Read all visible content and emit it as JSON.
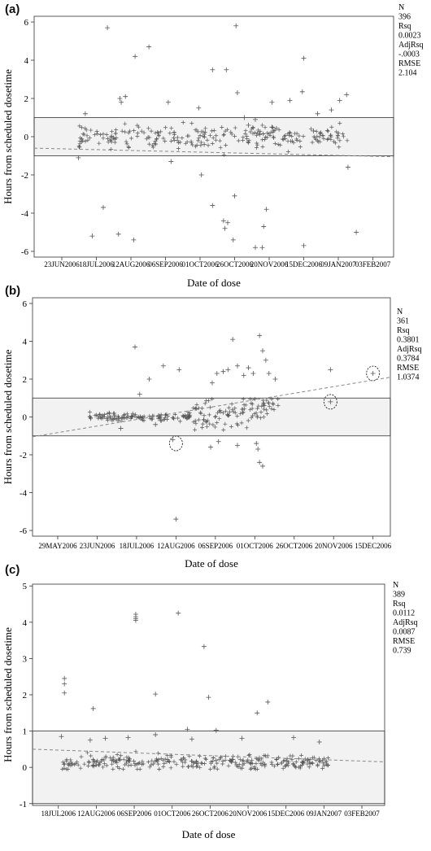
{
  "colors": {
    "band_fill": "#f2f2f2",
    "axis": "#333333",
    "marker": "#555555",
    "trend": "#888888"
  },
  "chart_data": [
    {
      "panel": "(a)",
      "type": "scatter",
      "xlabel": "Date of dose",
      "ylabel": "Hours from scheduled dosetime",
      "x_ticks": [
        "23JUN2006",
        "18JUL2006",
        "12AUG2006",
        "06SEP2006",
        "01OCT2006",
        "26OCT2006",
        "20NOV2006",
        "15DEC2006",
        "09JAN2007",
        "03FEB2007"
      ],
      "xlim": [
        "2006-06-03",
        "2007-02-18"
      ],
      "y_ticks": [
        "6",
        "4",
        "2",
        "0",
        "-2",
        "-4",
        "-6"
      ],
      "ylim": [
        -6.3,
        6.3
      ],
      "band": [
        -1,
        1
      ],
      "trend": {
        "x": [
          "2006-06-03",
          "2007-02-18"
        ],
        "y": [
          -0.6,
          -1.05
        ]
      },
      "stats": {
        "N_label": "N",
        "N": "396",
        "Rsq_label": "Rsq",
        "Rsq": "0.0023",
        "AdjRsq_label": "AdjRsq",
        "AdjRsq": "-.0003",
        "RMSE_label": "RMSE",
        "RMSE": "2.104"
      },
      "series": [
        {
          "marker": "+",
          "x": [
            "2006-07-10",
            "2006-07-26",
            "2006-08-15",
            "2006-08-25",
            "2006-09-08",
            "2006-09-30",
            "2006-10-10",
            "2006-10-20",
            "2006-10-27",
            "2006-10-28",
            "2006-11-02",
            "2006-11-05",
            "2006-11-10",
            "2006-11-22",
            "2006-12-05",
            "2006-12-14",
            "2006-12-15",
            "2006-12-25",
            "2007-01-04",
            "2007-01-10",
            "2007-01-15",
            "2006-07-05",
            "2006-07-15",
            "2006-07-23",
            "2006-08-03",
            "2006-08-14",
            "2006-09-10",
            "2006-10-02",
            "2006-10-10",
            "2006-10-18",
            "2006-10-19",
            "2006-10-21",
            "2006-10-25",
            "2006-10-26",
            "2006-11-10",
            "2006-11-15",
            "2006-11-16",
            "2006-11-18",
            "2006-12-15",
            "2007-01-16",
            "2007-01-22",
            "2006-08-04",
            "2006-08-05",
            "2006-08-08",
            "2006-10-04",
            "2006-11-22",
            "2006-12-22"
          ],
          "y": [
            1.2,
            5.7,
            4.2,
            4.7,
            1.8,
            1.5,
            3.5,
            3.5,
            5.8,
            2.3,
            1.0,
            0.6,
            0.9,
            1.8,
            1.9,
            2.35,
            4.1,
            1.2,
            1.4,
            1.9,
            2.2,
            -1.1,
            -5.2,
            -3.7,
            -5.1,
            -5.4,
            -1.3,
            -2.0,
            -3.6,
            -4.4,
            -4.8,
            -4.5,
            -5.4,
            -3.1,
            -5.8,
            -5.8,
            -4.7,
            -3.8,
            -5.7,
            -1.6,
            -5.0,
            2.0,
            1.8,
            2.1,
            -0.4,
            0.5,
            0.3
          ]
        }
      ]
    },
    {
      "panel": "(b)",
      "type": "scatter",
      "xlabel": "Date of dose",
      "ylabel": "Hours from scheduled dosetime",
      "x_ticks": [
        "29MAY2006",
        "23JUN2006",
        "18JUL2006",
        "12AUG2006",
        "06SEP2006",
        "01OCT2006",
        "26OCT2006",
        "20NOV2006",
        "15DEC2006"
      ],
      "xlim": [
        "2006-05-13",
        "2006-12-26"
      ],
      "y_ticks": [
        "6",
        "4",
        "2",
        "0",
        "-2",
        "-4",
        "-6"
      ],
      "ylim": [
        -6.3,
        6.3
      ],
      "band": [
        -1,
        1
      ],
      "trend": {
        "x": [
          "2006-05-13",
          "2006-12-26"
        ],
        "y": [
          -1.05,
          2.1
        ]
      },
      "stats": {
        "N_label": "N",
        "N": "361",
        "Rsq_label": "Rsq",
        "Rsq": "0.3801",
        "AdjRsq_label": "AdjRsq",
        "AdjRsq": "0.3784",
        "RMSE_label": "RMSE",
        "RMSE": "1.0374"
      },
      "circled": {
        "x": [
          "2006-08-12",
          "2006-11-18",
          "2006-12-15"
        ],
        "y": [
          -1.4,
          0.8,
          2.3
        ]
      },
      "series": [
        {
          "marker": "+",
          "x": [
            "2006-07-20",
            "2006-07-17",
            "2006-07-26",
            "2006-08-04",
            "2006-08-14",
            "2006-09-04",
            "2006-09-07",
            "2006-09-11",
            "2006-09-14",
            "2006-09-17",
            "2006-09-20",
            "2006-09-24",
            "2006-09-27",
            "2006-09-30",
            "2006-10-04",
            "2006-10-06",
            "2006-10-08",
            "2006-10-10",
            "2006-10-14",
            "2006-11-18",
            "2006-07-08",
            "2006-07-30",
            "2006-08-10",
            "2006-08-12",
            "2006-09-03",
            "2006-09-08",
            "2006-09-20",
            "2006-10-02",
            "2006-10-04",
            "2006-10-06",
            "2006-10-03",
            "2006-11-18",
            "2006-12-15"
          ],
          "y": [
            1.2,
            3.7,
            2.0,
            2.7,
            2.5,
            1.8,
            2.3,
            2.4,
            2.5,
            4.1,
            2.7,
            2.2,
            2.6,
            2.3,
            4.3,
            3.5,
            3.0,
            2.3,
            2.0,
            2.5,
            -0.6,
            -0.4,
            -1.2,
            -5.4,
            -1.6,
            -1.3,
            -1.5,
            -1.4,
            -2.4,
            -2.6,
            -1.7,
            0.8,
            2.3
          ]
        }
      ]
    },
    {
      "panel": "(c)",
      "type": "scatter",
      "xlabel": "Date of dose",
      "ylabel": "Hours from scheduled dosetime",
      "x_ticks": [
        "18JUL2006",
        "12AUG2006",
        "06SEP2006",
        "01OCT2006",
        "26OCT2006",
        "20NOV2006",
        "15DEC2006",
        "09JAN2007",
        "03FEB2007"
      ],
      "xlim": [
        "2006-07-01",
        "2007-02-18"
      ],
      "y_ticks": [
        "5",
        "4",
        "3",
        "2",
        "1",
        "0",
        "-1"
      ],
      "ylim": [
        -1.05,
        5.05
      ],
      "band": [
        -1,
        1
      ],
      "trend": {
        "x": [
          "2006-07-01",
          "2007-02-18"
        ],
        "y": [
          0.5,
          0.15
        ]
      },
      "stats": {
        "N_label": "N",
        "N": "389",
        "Rsq_label": "Rsq",
        "Rsq": "0.0112",
        "AdjRsq_label": "AdjRsq",
        "AdjRsq": "0.0087",
        "RMSE_label": "RMSE",
        "RMSE": "0.739"
      },
      "series": [
        {
          "marker": "+",
          "x": [
            "2006-07-22",
            "2006-07-22",
            "2006-07-22",
            "2006-08-10",
            "2006-09-07",
            "2006-09-07",
            "2006-09-07",
            "2006-09-07",
            "2006-09-20",
            "2006-10-05",
            "2006-10-11",
            "2006-10-22",
            "2006-10-25",
            "2006-10-30",
            "2006-11-26",
            "2006-12-03",
            "2006-07-20",
            "2006-08-08",
            "2006-08-18",
            "2006-09-02",
            "2006-09-20",
            "2006-10-14",
            "2006-11-16",
            "2006-12-20",
            "2007-01-06"
          ],
          "y": [
            2.45,
            2.3,
            2.05,
            1.62,
            4.22,
            4.15,
            4.1,
            4.05,
            2.02,
            4.25,
            1.05,
            3.33,
            1.93,
            1.02,
            1.5,
            1.8,
            0.85,
            0.75,
            0.8,
            0.82,
            0.9,
            0.78,
            0.8,
            0.82,
            0.7
          ]
        }
      ]
    }
  ]
}
